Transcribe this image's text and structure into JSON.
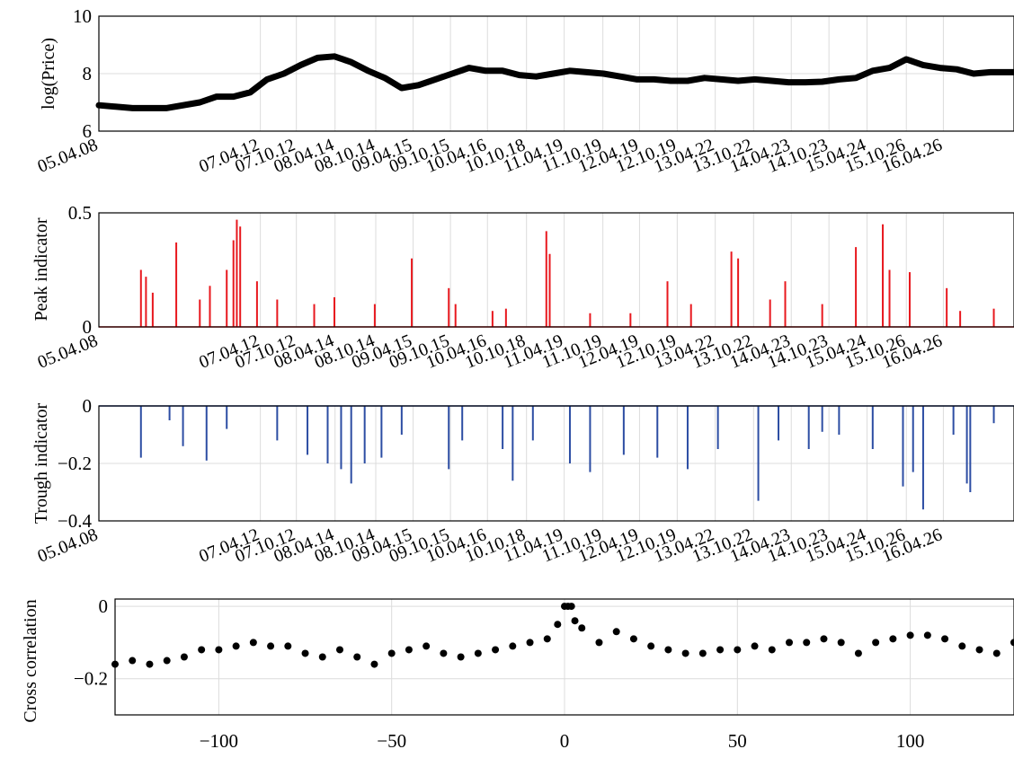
{
  "chart_data": [
    {
      "type": "line",
      "ylabel": "log(Price)",
      "ylim": [
        6,
        10
      ],
      "yticks": [
        6,
        8,
        10
      ],
      "xlim": [
        0,
        2720
      ],
      "grid": true,
      "line_color": "#000000",
      "date_ticks": [
        {
          "x": 0,
          "label": "05.04.08"
        },
        {
          "x": 480,
          "label": "07.04.12"
        },
        {
          "x": 587,
          "label": "07.10.12"
        },
        {
          "x": 702,
          "label": "08.04.14"
        },
        {
          "x": 823,
          "label": "08.10.14"
        },
        {
          "x": 934,
          "label": "09.04.15"
        },
        {
          "x": 1045,
          "label": "09.10.15"
        },
        {
          "x": 1155,
          "label": "10.04.16"
        },
        {
          "x": 1271,
          "label": "10.10.18"
        },
        {
          "x": 1383,
          "label": "11.04.19"
        },
        {
          "x": 1498,
          "label": "11.10.19"
        },
        {
          "x": 1607,
          "label": "12.04.19"
        },
        {
          "x": 1719,
          "label": "12.10.19"
        },
        {
          "x": 1832,
          "label": "13.04.22"
        },
        {
          "x": 1946,
          "label": "13.10.22"
        },
        {
          "x": 2058,
          "label": "14.04.23"
        },
        {
          "x": 2170,
          "label": "14.10.23"
        },
        {
          "x": 2283,
          "label": "15.04.24"
        },
        {
          "x": 2400,
          "label": "15.10.26"
        },
        {
          "x": 2510,
          "label": "16.04.26"
        }
      ],
      "x": [
        0,
        100,
        200,
        300,
        350,
        400,
        450,
        500,
        550,
        600,
        650,
        700,
        750,
        800,
        850,
        900,
        950,
        1000,
        1050,
        1100,
        1150,
        1200,
        1250,
        1300,
        1350,
        1400,
        1450,
        1500,
        1550,
        1600,
        1650,
        1700,
        1750,
        1800,
        1850,
        1900,
        1950,
        2000,
        2050,
        2100,
        2150,
        2200,
        2250,
        2300,
        2350,
        2400,
        2450,
        2500,
        2550,
        2600,
        2650,
        2720
      ],
      "values": [
        6.9,
        6.8,
        6.8,
        7.0,
        7.2,
        7.2,
        7.35,
        7.8,
        8.0,
        8.3,
        8.55,
        8.6,
        8.4,
        8.1,
        7.85,
        7.5,
        7.6,
        7.8,
        8.0,
        8.2,
        8.1,
        8.1,
        7.95,
        7.9,
        8.0,
        8.1,
        8.05,
        8.0,
        7.9,
        7.8,
        7.8,
        7.75,
        7.75,
        7.85,
        7.8,
        7.75,
        7.8,
        7.75,
        7.7,
        7.7,
        7.72,
        7.8,
        7.85,
        8.1,
        8.2,
        8.5,
        8.3,
        8.2,
        8.15,
        8.0,
        8.05,
        8.05
      ]
    },
    {
      "type": "bar",
      "ylabel": "Peak indicator",
      "ylim": [
        0,
        0.5
      ],
      "yticks": [
        0,
        0.5
      ],
      "ytick_labels": [
        "0",
        "0.5"
      ],
      "xlim": [
        0,
        2720
      ],
      "grid": true,
      "bar_color": "#e8181e",
      "date_ticks_ref": 0,
      "spikes": [
        {
          "x": 125,
          "value": 0.25
        },
        {
          "x": 140,
          "value": 0.22
        },
        {
          "x": 160,
          "value": 0.15
        },
        {
          "x": 230,
          "value": 0.37
        },
        {
          "x": 300,
          "value": 0.12
        },
        {
          "x": 330,
          "value": 0.18
        },
        {
          "x": 380,
          "value": 0.25
        },
        {
          "x": 400,
          "value": 0.38
        },
        {
          "x": 410,
          "value": 0.47
        },
        {
          "x": 420,
          "value": 0.44
        },
        {
          "x": 470,
          "value": 0.2
        },
        {
          "x": 530,
          "value": 0.12
        },
        {
          "x": 640,
          "value": 0.1
        },
        {
          "x": 700,
          "value": 0.13
        },
        {
          "x": 820,
          "value": 0.1
        },
        {
          "x": 930,
          "value": 0.3
        },
        {
          "x": 1040,
          "value": 0.17
        },
        {
          "x": 1060,
          "value": 0.1
        },
        {
          "x": 1170,
          "value": 0.07
        },
        {
          "x": 1210,
          "value": 0.08
        },
        {
          "x": 1330,
          "value": 0.42
        },
        {
          "x": 1340,
          "value": 0.32
        },
        {
          "x": 1460,
          "value": 0.06
        },
        {
          "x": 1580,
          "value": 0.06
        },
        {
          "x": 1690,
          "value": 0.2
        },
        {
          "x": 1760,
          "value": 0.1
        },
        {
          "x": 1880,
          "value": 0.33
        },
        {
          "x": 1900,
          "value": 0.3
        },
        {
          "x": 1995,
          "value": 0.12
        },
        {
          "x": 2040,
          "value": 0.2
        },
        {
          "x": 2150,
          "value": 0.1
        },
        {
          "x": 2250,
          "value": 0.35
        },
        {
          "x": 2330,
          "value": 0.45
        },
        {
          "x": 2350,
          "value": 0.25
        },
        {
          "x": 2410,
          "value": 0.24
        },
        {
          "x": 2520,
          "value": 0.17
        },
        {
          "x": 2560,
          "value": 0.07
        },
        {
          "x": 2660,
          "value": 0.08
        }
      ]
    },
    {
      "type": "bar",
      "ylabel": "Trough indicator",
      "ylim": [
        -0.4,
        0
      ],
      "yticks": [
        -0.4,
        -0.2,
        0
      ],
      "ytick_labels": [
        "−0.4",
        "−0.2",
        "0"
      ],
      "xlim": [
        0,
        2720
      ],
      "grid": true,
      "bar_color": "#2c4da3",
      "date_ticks_ref": 0,
      "spikes": [
        {
          "x": 125,
          "value": -0.18
        },
        {
          "x": 210,
          "value": -0.05
        },
        {
          "x": 250,
          "value": -0.14
        },
        {
          "x": 320,
          "value": -0.19
        },
        {
          "x": 380,
          "value": -0.08
        },
        {
          "x": 530,
          "value": -0.12
        },
        {
          "x": 620,
          "value": -0.17
        },
        {
          "x": 680,
          "value": -0.2
        },
        {
          "x": 720,
          "value": -0.22
        },
        {
          "x": 750,
          "value": -0.27
        },
        {
          "x": 790,
          "value": -0.2
        },
        {
          "x": 840,
          "value": -0.18
        },
        {
          "x": 900,
          "value": -0.1
        },
        {
          "x": 1040,
          "value": -0.22
        },
        {
          "x": 1080,
          "value": -0.12
        },
        {
          "x": 1200,
          "value": -0.15
        },
        {
          "x": 1230,
          "value": -0.26
        },
        {
          "x": 1290,
          "value": -0.12
        },
        {
          "x": 1400,
          "value": -0.2
        },
        {
          "x": 1460,
          "value": -0.23
        },
        {
          "x": 1560,
          "value": -0.17
        },
        {
          "x": 1660,
          "value": -0.18
        },
        {
          "x": 1750,
          "value": -0.22
        },
        {
          "x": 1840,
          "value": -0.15
        },
        {
          "x": 1960,
          "value": -0.33
        },
        {
          "x": 2020,
          "value": -0.12
        },
        {
          "x": 2110,
          "value": -0.15
        },
        {
          "x": 2150,
          "value": -0.09
        },
        {
          "x": 2200,
          "value": -0.1
        },
        {
          "x": 2300,
          "value": -0.15
        },
        {
          "x": 2390,
          "value": -0.28
        },
        {
          "x": 2420,
          "value": -0.23
        },
        {
          "x": 2450,
          "value": -0.36
        },
        {
          "x": 2540,
          "value": -0.1
        },
        {
          "x": 2580,
          "value": -0.27
        },
        {
          "x": 2590,
          "value": -0.3
        },
        {
          "x": 2660,
          "value": -0.06
        }
      ]
    },
    {
      "type": "scatter",
      "ylabel": "Cross correlation",
      "ylim": [
        -0.3,
        0.02
      ],
      "yticks": [
        -0.2,
        0
      ],
      "ytick_labels": [
        "−0.2",
        "0"
      ],
      "xlim": [
        -130,
        130
      ],
      "xticks": [
        -100,
        -50,
        0,
        50,
        100
      ],
      "xtick_labels": [
        "−100",
        "−50",
        "0",
        "50",
        "100"
      ],
      "grid": true,
      "point_color": "#000000",
      "x": [
        -130,
        -125,
        -120,
        -115,
        -110,
        -105,
        -100,
        -95,
        -90,
        -85,
        -80,
        -75,
        -70,
        -65,
        -60,
        -55,
        -50,
        -45,
        -40,
        -35,
        -30,
        -25,
        -20,
        -15,
        -10,
        -5,
        -2,
        0,
        1,
        2,
        3,
        5,
        10,
        15,
        20,
        25,
        30,
        35,
        40,
        45,
        50,
        55,
        60,
        65,
        70,
        75,
        80,
        85,
        90,
        95,
        100,
        105,
        110,
        115,
        120,
        125,
        130
      ],
      "values": [
        -0.16,
        -0.15,
        -0.16,
        -0.15,
        -0.14,
        -0.12,
        -0.12,
        -0.11,
        -0.1,
        -0.11,
        -0.11,
        -0.13,
        -0.14,
        -0.12,
        -0.14,
        -0.16,
        -0.13,
        -0.12,
        -0.11,
        -0.13,
        -0.14,
        -0.13,
        -0.12,
        -0.11,
        -0.1,
        -0.09,
        -0.05,
        0.0,
        0.0,
        0.0,
        -0.04,
        -0.06,
        -0.1,
        -0.07,
        -0.09,
        -0.11,
        -0.12,
        -0.13,
        -0.13,
        -0.12,
        -0.12,
        -0.11,
        -0.12,
        -0.1,
        -0.1,
        -0.09,
        -0.1,
        -0.13,
        -0.1,
        -0.09,
        -0.08,
        -0.08,
        -0.09,
        -0.11,
        -0.12,
        -0.13,
        -0.1
      ]
    }
  ]
}
